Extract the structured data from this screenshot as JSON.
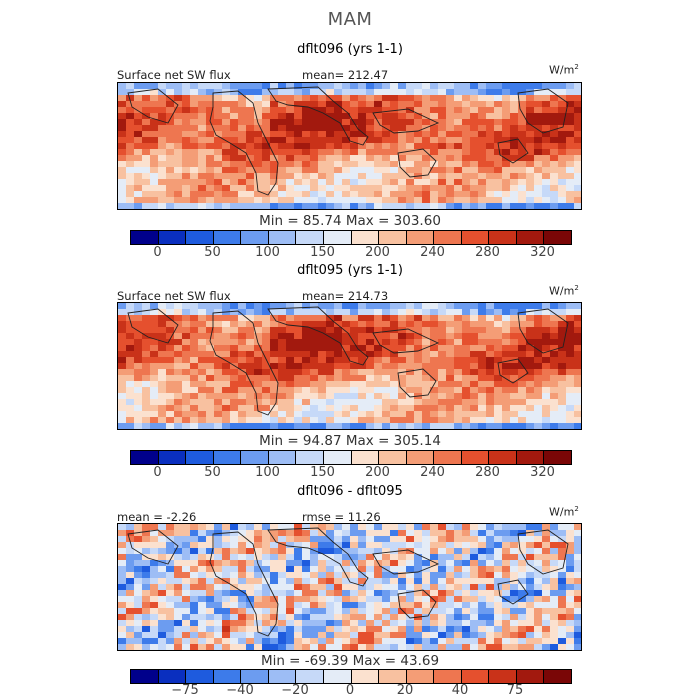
{
  "season": "MAM",
  "units_base": "W/m",
  "units_exp": "2",
  "panels": [
    {
      "title": "dflt096 (yrs 1-1)",
      "left_label": "Surface net SW flux",
      "mid_label": "mean= 212.47",
      "minmax": "Min =  85.74 Max =  303.60",
      "scale": "abs"
    },
    {
      "title": "dflt095 (yrs 1-1)",
      "left_label": "Surface net SW flux",
      "mid_label": "mean= 214.73",
      "minmax": "Min =  94.87 Max =  305.14",
      "scale": "abs"
    },
    {
      "title": "dflt096 - dflt095",
      "left_label": "mean =  -2.26",
      "mid_label": "rmse =  11.26",
      "minmax": "Min = -69.39 Max =  43.69",
      "scale": "diff"
    }
  ],
  "colorbars": {
    "abs": {
      "colors": [
        "#00008b",
        "#0a2fbf",
        "#1e5bde",
        "#3d7bea",
        "#6c9cf0",
        "#9dbdf5",
        "#c6d9f8",
        "#e4ecf7",
        "#fbe1cf",
        "#f8c1a0",
        "#f49d76",
        "#ee7650",
        "#e5502e",
        "#c93219",
        "#a2190e",
        "#7a0606"
      ],
      "tick_labels": [
        "0",
        "50",
        "100",
        "150",
        "200",
        "240",
        "280",
        "320"
      ]
    },
    "diff": {
      "colors": [
        "#00008b",
        "#0a2fbf",
        "#1e5bde",
        "#3d7bea",
        "#6c9cf0",
        "#9dbdf5",
        "#c6d9f8",
        "#e4ecf7",
        "#fbe1cf",
        "#f8c1a0",
        "#f49d76",
        "#ee7650",
        "#e5502e",
        "#c93219",
        "#a2190e",
        "#7a0606"
      ],
      "tick_labels": [
        "-75",
        "-40",
        "-20",
        "0",
        "20",
        "40",
        "75"
      ]
    }
  },
  "chart_data": [
    {
      "type": "heatmap",
      "title": "dflt096 (yrs 1-1)",
      "variable": "Surface net SW flux",
      "units": "W/m2",
      "mean": 212.47,
      "min": 85.74,
      "max": 303.6,
      "colorbar_ticks": [
        0,
        50,
        100,
        150,
        200,
        240,
        280,
        320
      ]
    },
    {
      "type": "heatmap",
      "title": "dflt095 (yrs 1-1)",
      "variable": "Surface net SW flux",
      "units": "W/m2",
      "mean": 214.73,
      "min": 94.87,
      "max": 305.14,
      "colorbar_ticks": [
        0,
        50,
        100,
        150,
        200,
        240,
        280,
        320
      ]
    },
    {
      "type": "heatmap",
      "title": "dflt096 - dflt095",
      "units": "W/m2",
      "mean": -2.26,
      "rmse": 11.26,
      "min": -69.39,
      "max": 43.69,
      "colorbar_ticks": [
        -75,
        -40,
        -20,
        0,
        20,
        40,
        75
      ]
    }
  ]
}
